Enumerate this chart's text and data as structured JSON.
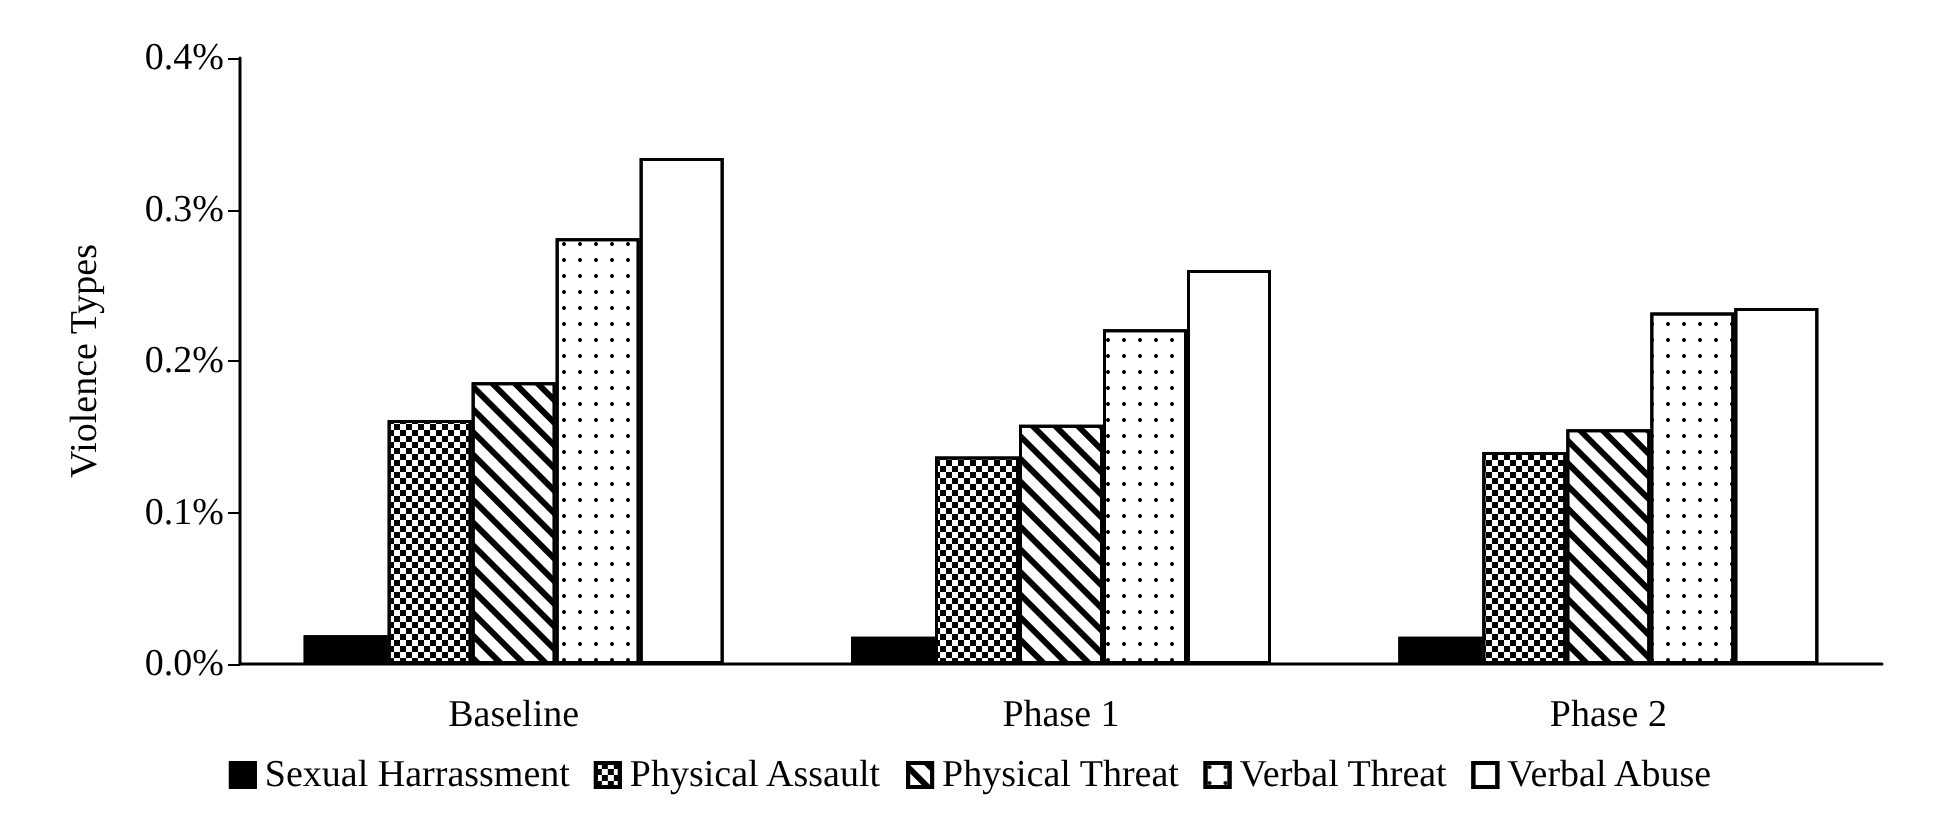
{
  "chart_data": {
    "type": "bar",
    "ylabel": "Violence Types",
    "categories": [
      "Baseline",
      "Phase 1",
      "Phase 2"
    ],
    "series": [
      {
        "name": "Sexual Harrassment",
        "color": "#000000",
        "values": [
          0.019,
          0.018,
          0.018
        ]
      },
      {
        "name": "Physical Assault",
        "color": "#ffffff",
        "values": [
          0.161,
          0.137,
          0.14
        ]
      },
      {
        "name": "Physical Threat",
        "color": "#ffffff",
        "values": [
          0.186,
          0.158,
          0.155
        ]
      },
      {
        "name": "Verbal Threat",
        "color": "#ffffff",
        "values": [
          0.281,
          0.221,
          0.232
        ]
      },
      {
        "name": "Verbal Abuse",
        "color": "#ffffff",
        "values": [
          0.334,
          0.26,
          0.235
        ]
      }
    ],
    "ylim": [
      0,
      0.4
    ],
    "yticks": [
      {
        "value": 0,
        "label": "0.0%"
      },
      {
        "value": 0.1,
        "label": "0.1%"
      },
      {
        "value": 0.2,
        "label": "0.2%"
      },
      {
        "value": 0.3,
        "label": "0.3%"
      },
      {
        "value": 0.4,
        "label": "0.4%"
      }
    ],
    "grid": false,
    "legend": "bottom"
  }
}
